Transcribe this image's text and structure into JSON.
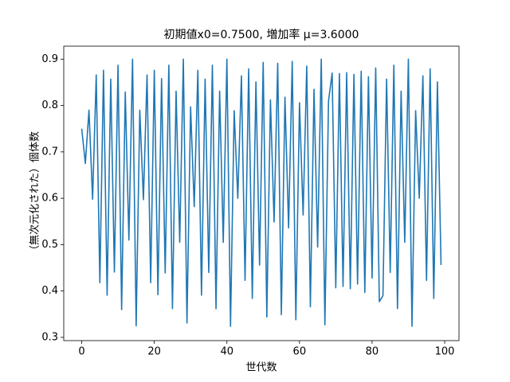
{
  "chart_data": {
    "type": "line",
    "title": "初期値x0=0.7500, 増加率 μ=3.6000",
    "x_label": "世代数",
    "y_label": "（無次元化された）個体数",
    "x": [
      0,
      1,
      2,
      3,
      4,
      5,
      6,
      7,
      8,
      9,
      10,
      11,
      12,
      13,
      14,
      15,
      16,
      17,
      18,
      19,
      20,
      21,
      22,
      23,
      24,
      25,
      26,
      27,
      28,
      29,
      30,
      31,
      32,
      33,
      34,
      35,
      36,
      37,
      38,
      39,
      40,
      41,
      42,
      43,
      44,
      45,
      46,
      47,
      48,
      49,
      50,
      51,
      52,
      53,
      54,
      55,
      56,
      57,
      58,
      59,
      60,
      61,
      62,
      63,
      64,
      65,
      66,
      67,
      68,
      69,
      70,
      71,
      72,
      73,
      74,
      75,
      76,
      77,
      78,
      79,
      80,
      81,
      82,
      83,
      84,
      85,
      86,
      87,
      88,
      89,
      90,
      91,
      92,
      93,
      94,
      95,
      96,
      97,
      98,
      99
    ],
    "series": [
      {
        "color": "#1f77b4",
        "values": [
          0.75,
          0.675,
          0.79,
          0.598,
          0.866,
          0.418,
          0.876,
          0.391,
          0.857,
          0.441,
          0.887,
          0.36,
          0.829,
          0.51,
          0.9,
          0.325,
          0.79,
          0.597,
          0.866,
          0.418,
          0.876,
          0.392,
          0.858,
          0.439,
          0.887,
          0.362,
          0.831,
          0.505,
          0.9,
          0.331,
          0.797,
          0.582,
          0.876,
          0.391,
          0.857,
          0.44,
          0.887,
          0.362,
          0.831,
          0.505,
          0.9,
          0.324,
          0.789,
          0.6,
          0.864,
          0.423,
          0.879,
          0.384,
          0.851,
          0.456,
          0.893,
          0.344,
          0.812,
          0.549,
          0.891,
          0.349,
          0.818,
          0.536,
          0.895,
          0.338,
          0.806,
          0.564,
          0.885,
          0.366,
          0.835,
          0.495,
          0.9,
          0.327,
          0.81,
          0.87,
          0.407,
          0.869,
          0.41,
          0.871,
          0.405,
          0.867,
          0.415,
          0.874,
          0.397,
          0.862,
          0.428,
          0.881,
          0.377,
          0.39,
          0.857,
          0.44,
          0.887,
          0.362,
          0.831,
          0.505,
          0.9,
          0.324,
          0.789,
          0.6,
          0.864,
          0.423,
          0.879,
          0.384,
          0.851,
          0.456
        ]
      }
    ],
    "xlim": [
      -4.95,
      103.95
    ],
    "xticks": [
      0,
      20,
      40,
      60,
      80,
      100
    ],
    "ylim": [
      0.293,
      0.928
    ],
    "yticks": [
      0.3,
      0.4,
      0.5,
      0.6,
      0.7,
      0.8,
      0.9
    ]
  }
}
